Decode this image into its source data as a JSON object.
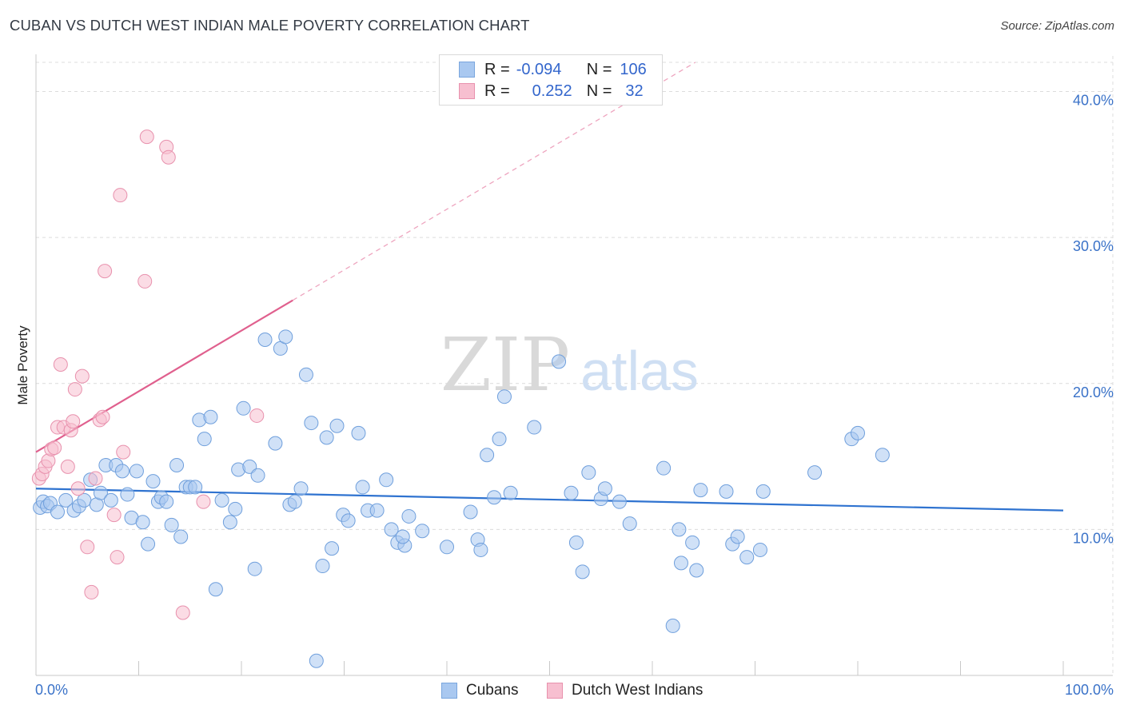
{
  "header": {
    "title": "CUBAN VS DUTCH WEST INDIAN MALE POVERTY CORRELATION CHART",
    "source": "Source: ZipAtlas.com"
  },
  "watermark": {
    "zip": "ZIP",
    "atlas": "atlas"
  },
  "legend": {
    "rows": [
      {
        "r_label": "R =",
        "r_value": "-0.094",
        "n_label": "N =",
        "n_value": "106",
        "color": "#a9c8f0",
        "stroke": "#7aa6de"
      },
      {
        "r_label": "R =",
        "r_value": "0.252",
        "n_label": "N =",
        "n_value": "32",
        "color": "#f7bfd0",
        "stroke": "#e891ad"
      }
    ]
  },
  "bottom_legend": {
    "series1": "Cubans",
    "series2": "Dutch West Indians"
  },
  "chart_data": {
    "type": "scatter",
    "title": "CUBAN VS DUTCH WEST INDIAN MALE POVERTY CORRELATION CHART",
    "xlabel": "",
    "ylabel": "Male Poverty",
    "xlim": [
      0,
      100
    ],
    "ylim": [
      0,
      42
    ],
    "x_tick_labels": [
      "0.0%",
      "100.0%"
    ],
    "y_ticks": [
      10,
      20,
      30,
      40
    ],
    "y_tick_labels": [
      "10.0%",
      "20.0%",
      "30.0%",
      "40.0%"
    ],
    "grid": true,
    "legend_position": "top-center",
    "series": [
      {
        "name": "Cubans",
        "color": "#a9c8f0",
        "stroke": "#6f9fdc",
        "trend": {
          "x": [
            0,
            100
          ],
          "y": [
            12.8,
            11.3
          ],
          "color": "#2f73d0"
        },
        "points": [
          [
            0.4,
            11.5
          ],
          [
            0.7,
            11.9
          ],
          [
            1.1,
            11.6
          ],
          [
            1.4,
            11.8
          ],
          [
            2.1,
            11.2
          ],
          [
            2.9,
            12.0
          ],
          [
            3.7,
            11.3
          ],
          [
            4.2,
            11.6
          ],
          [
            4.7,
            12.0
          ],
          [
            5.3,
            13.4
          ],
          [
            5.9,
            11.7
          ],
          [
            6.3,
            12.5
          ],
          [
            6.8,
            14.4
          ],
          [
            7.3,
            12.0
          ],
          [
            7.8,
            14.4
          ],
          [
            8.4,
            14.0
          ],
          [
            8.9,
            12.4
          ],
          [
            9.3,
            10.8
          ],
          [
            9.8,
            14.0
          ],
          [
            10.4,
            10.5
          ],
          [
            10.9,
            9.0
          ],
          [
            11.4,
            13.3
          ],
          [
            11.9,
            11.9
          ],
          [
            12.2,
            12.2
          ],
          [
            12.7,
            11.9
          ],
          [
            13.2,
            10.3
          ],
          [
            13.7,
            14.4
          ],
          [
            14.1,
            9.5
          ],
          [
            14.6,
            12.9
          ],
          [
            15.0,
            12.9
          ],
          [
            15.5,
            12.9
          ],
          [
            15.9,
            17.5
          ],
          [
            16.4,
            16.2
          ],
          [
            17.0,
            17.7
          ],
          [
            17.5,
            5.9
          ],
          [
            18.1,
            12.0
          ],
          [
            18.9,
            10.5
          ],
          [
            19.4,
            11.4
          ],
          [
            19.7,
            14.1
          ],
          [
            20.2,
            18.3
          ],
          [
            20.8,
            14.3
          ],
          [
            21.3,
            7.3
          ],
          [
            21.6,
            13.7
          ],
          [
            22.3,
            23.0
          ],
          [
            23.3,
            15.9
          ],
          [
            23.8,
            22.4
          ],
          [
            24.3,
            23.2
          ],
          [
            24.7,
            11.7
          ],
          [
            25.2,
            11.9
          ],
          [
            25.8,
            12.8
          ],
          [
            26.3,
            20.6
          ],
          [
            26.8,
            17.3
          ],
          [
            27.3,
            1.0
          ],
          [
            27.9,
            7.5
          ],
          [
            28.3,
            16.3
          ],
          [
            28.8,
            8.7
          ],
          [
            29.3,
            17.1
          ],
          [
            29.9,
            11.0
          ],
          [
            30.4,
            10.6
          ],
          [
            31.4,
            16.6
          ],
          [
            31.8,
            12.9
          ],
          [
            32.3,
            11.3
          ],
          [
            33.2,
            11.3
          ],
          [
            34.1,
            13.4
          ],
          [
            34.6,
            10.0
          ],
          [
            35.2,
            9.1
          ],
          [
            35.9,
            8.9
          ],
          [
            36.3,
            10.9
          ],
          [
            37.6,
            9.9
          ],
          [
            40.0,
            8.8
          ],
          [
            42.3,
            11.2
          ],
          [
            43.0,
            9.3
          ],
          [
            43.3,
            8.6
          ],
          [
            43.9,
            15.1
          ],
          [
            44.6,
            12.2
          ],
          [
            45.1,
            16.2
          ],
          [
            45.6,
            19.1
          ],
          [
            46.2,
            12.5
          ],
          [
            48.5,
            17.0
          ],
          [
            50.9,
            21.5
          ],
          [
            52.1,
            12.5
          ],
          [
            52.6,
            9.1
          ],
          [
            53.2,
            7.1
          ],
          [
            53.8,
            13.9
          ],
          [
            55.0,
            12.1
          ],
          [
            55.4,
            12.8
          ],
          [
            56.8,
            11.9
          ],
          [
            57.8,
            10.4
          ],
          [
            61.1,
            14.2
          ],
          [
            62.6,
            10.0
          ],
          [
            62.8,
            7.7
          ],
          [
            63.9,
            9.1
          ],
          [
            64.3,
            7.2
          ],
          [
            64.7,
            12.7
          ],
          [
            67.2,
            12.6
          ],
          [
            67.8,
            9.0
          ],
          [
            68.3,
            9.5
          ],
          [
            69.2,
            8.1
          ],
          [
            70.5,
            8.6
          ],
          [
            70.8,
            12.6
          ],
          [
            75.8,
            13.9
          ],
          [
            79.4,
            16.2
          ],
          [
            80.0,
            16.6
          ],
          [
            82.4,
            15.1
          ],
          [
            62.0,
            3.4
          ],
          [
            35.7,
            9.5
          ]
        ]
      },
      {
        "name": "Dutch West Indians",
        "color": "#f7bfd0",
        "stroke": "#e891ad",
        "trend": {
          "x": [
            0,
            25
          ],
          "y": [
            15.3,
            25.7
          ],
          "color": "#e0608e",
          "dash_to_x": 100
        },
        "points": [
          [
            0.3,
            13.5
          ],
          [
            0.6,
            13.8
          ],
          [
            0.9,
            14.3
          ],
          [
            1.2,
            14.7
          ],
          [
            1.5,
            15.5
          ],
          [
            1.8,
            15.6
          ],
          [
            2.1,
            17.0
          ],
          [
            2.4,
            21.3
          ],
          [
            2.7,
            17.0
          ],
          [
            3.1,
            14.3
          ],
          [
            3.4,
            16.8
          ],
          [
            3.6,
            17.4
          ],
          [
            3.8,
            19.6
          ],
          [
            4.1,
            12.8
          ],
          [
            4.5,
            20.5
          ],
          [
            5.0,
            8.8
          ],
          [
            5.4,
            5.7
          ],
          [
            5.8,
            13.5
          ],
          [
            6.2,
            17.5
          ],
          [
            6.5,
            17.7
          ],
          [
            6.7,
            27.7
          ],
          [
            7.6,
            11.0
          ],
          [
            7.9,
            8.1
          ],
          [
            8.2,
            32.9
          ],
          [
            8.5,
            15.3
          ],
          [
            10.6,
            27.0
          ],
          [
            10.8,
            36.9
          ],
          [
            12.7,
            36.2
          ],
          [
            12.9,
            35.5
          ],
          [
            14.3,
            4.3
          ],
          [
            16.3,
            11.9
          ],
          [
            21.5,
            17.8
          ]
        ]
      }
    ]
  }
}
